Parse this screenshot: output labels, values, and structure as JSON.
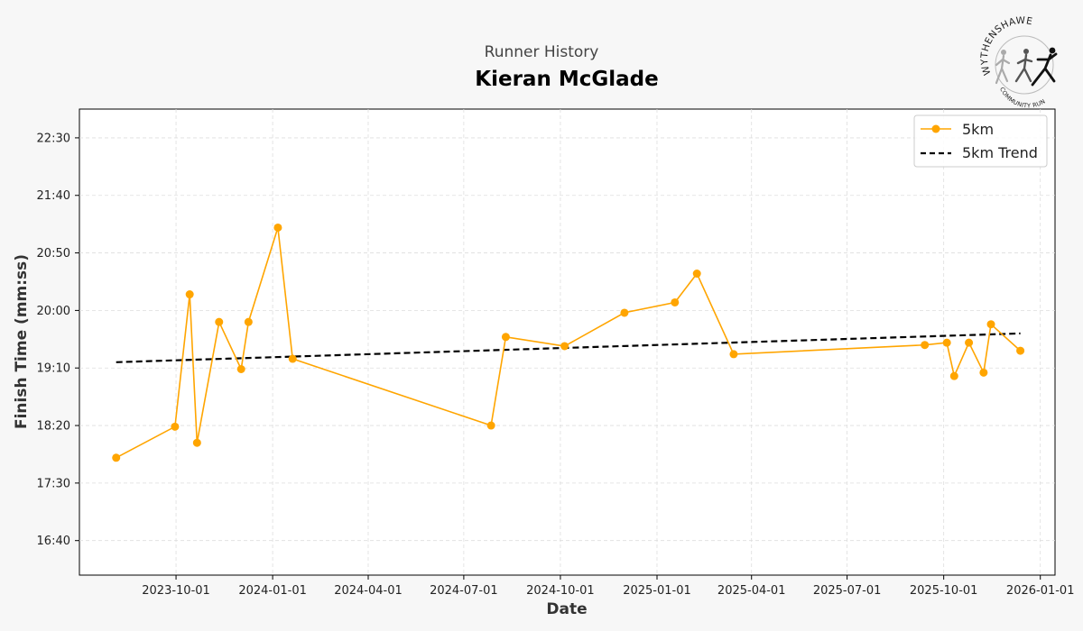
{
  "header": {
    "subtitle": "Runner History",
    "title": "Kieran McGlade"
  },
  "logo": {
    "top_text": "WYTHENSHAWE",
    "bottom_text": "COMMUNITY RUN",
    "icon": "runners-logo-icon"
  },
  "chart_data": {
    "type": "line",
    "xlabel": "Date",
    "ylabel": "Finish Time (mm:ss)",
    "x_axis_type": "date",
    "y_axis_type": "time mm:ss",
    "ylim": [
      "16:10",
      "22:55"
    ],
    "xlim": [
      "2023-07-01",
      "2026-01-15"
    ],
    "x_ticks": [
      "2023-10-01",
      "2024-01-01",
      "2024-04-01",
      "2024-07-01",
      "2024-10-01",
      "2025-01-01",
      "2025-04-01",
      "2025-07-01",
      "2025-10-01",
      "2026-01-01"
    ],
    "y_ticks": [
      "16:40",
      "17:30",
      "18:20",
      "19:10",
      "20:00",
      "20:50",
      "21:40",
      "22:30"
    ],
    "grid": true,
    "legend_position": "top-right",
    "series": [
      {
        "name": "5km",
        "color": "#FFA500",
        "marker": "circle",
        "points": [
          {
            "date": "2023-08-05",
            "time": "17:52"
          },
          {
            "date": "2023-09-30",
            "time": "18:19"
          },
          {
            "date": "2023-10-14",
            "time": "20:14"
          },
          {
            "date": "2023-10-21",
            "time": "18:05"
          },
          {
            "date": "2023-11-11",
            "time": "19:50"
          },
          {
            "date": "2023-12-02",
            "time": "19:09"
          },
          {
            "date": "2023-12-09",
            "time": "19:50"
          },
          {
            "date": "2024-01-06",
            "time": "21:12"
          },
          {
            "date": "2024-01-20",
            "time": "19:18"
          },
          {
            "date": "2024-07-27",
            "time": "18:20"
          },
          {
            "date": "2024-08-10",
            "time": "19:37"
          },
          {
            "date": "2024-10-05",
            "time": "19:29"
          },
          {
            "date": "2024-12-01",
            "time": "19:58"
          },
          {
            "date": "2025-01-18",
            "time": "20:07"
          },
          {
            "date": "2025-02-08",
            "time": "20:32"
          },
          {
            "date": "2025-03-15",
            "time": "19:22"
          },
          {
            "date": "2025-09-13",
            "time": "19:30"
          },
          {
            "date": "2025-10-04",
            "time": "19:32"
          },
          {
            "date": "2025-10-11",
            "time": "19:03"
          },
          {
            "date": "2025-10-25",
            "time": "19:32"
          },
          {
            "date": "2025-11-08",
            "time": "19:06"
          },
          {
            "date": "2025-11-15",
            "time": "19:48"
          },
          {
            "date": "2025-12-13",
            "time": "19:25"
          }
        ]
      },
      {
        "name": "5km Trend",
        "color": "#000000",
        "style": "dashed",
        "points": [
          {
            "date": "2023-08-05",
            "time": "19:15"
          },
          {
            "date": "2025-12-13",
            "time": "19:40"
          }
        ]
      }
    ]
  }
}
